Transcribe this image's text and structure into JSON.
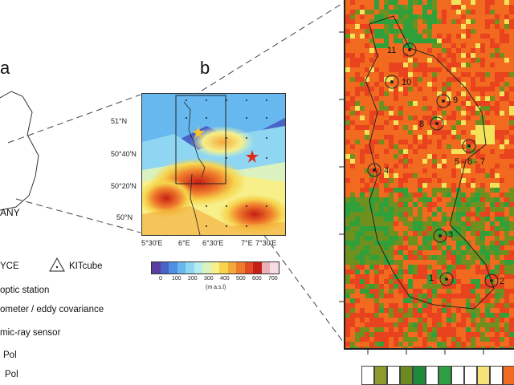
{
  "panels": {
    "a": "a",
    "b": "b"
  },
  "country_label": "ANY",
  "panel_b": {
    "lat_ticks": [
      "51°N",
      "50°40'N",
      "50°20'N",
      "50°N"
    ],
    "lon_ticks": [
      "5°30'E",
      "6°E",
      "6°30'E",
      "7°E",
      "7°30'E"
    ],
    "colorbar": {
      "ticks": [
        "0",
        "100",
        "200",
        "300",
        "400",
        "500",
        "600",
        "700"
      ],
      "unit": "(m a.s.l)",
      "colors": [
        "#5a3fa0",
        "#4a63c8",
        "#4d8fe0",
        "#66b8ee",
        "#8fd6f2",
        "#b6ecef",
        "#d9f2c0",
        "#f7f08a",
        "#f6d44e",
        "#f3a93a",
        "#ee7a2c",
        "#e24a23",
        "#c62016",
        "#e9b0b8",
        "#f6dce2"
      ]
    }
  },
  "legend": {
    "items": [
      {
        "icon": "star-icon",
        "label": "YCE"
      },
      {
        "icon": "triangle-icon",
        "label": "KITcube"
      },
      {
        "icon": "dot-icon",
        "label": "optic station"
      },
      {
        "icon": "dot-icon",
        "label": "ometer / eddy covariance"
      },
      {
        "icon": "dot-icon",
        "label": "mic-ray sensor"
      },
      {
        "icon": "dot-icon",
        "label": "Pol"
      },
      {
        "icon": "dot-icon",
        "label": "Pol"
      }
    ]
  },
  "panel_c": {
    "stations": [
      {
        "label": "11"
      },
      {
        "label": "10"
      },
      {
        "label": "9"
      },
      {
        "label": "8"
      },
      {
        "label": "5 - 6 - 7"
      },
      {
        "label": "4"
      },
      {
        "label": "3"
      },
      {
        "label": "1"
      },
      {
        "label": "2"
      }
    ],
    "landcover_colors": [
      "#e8421f",
      "#f26a1f",
      "#6f8f1f",
      "#2fa03a",
      "#f3e35a"
    ],
    "bottom_legend_colors": [
      "#ffffff",
      "#8c9b2a",
      "#ffffff",
      "#6d8a20",
      "#1f8b3a",
      "#ffffff",
      "#2ea043",
      "#ffffff",
      "#ffffff",
      "#f5e27a",
      "#ffffff",
      "#f26a1f",
      "#e8421f"
    ]
  }
}
